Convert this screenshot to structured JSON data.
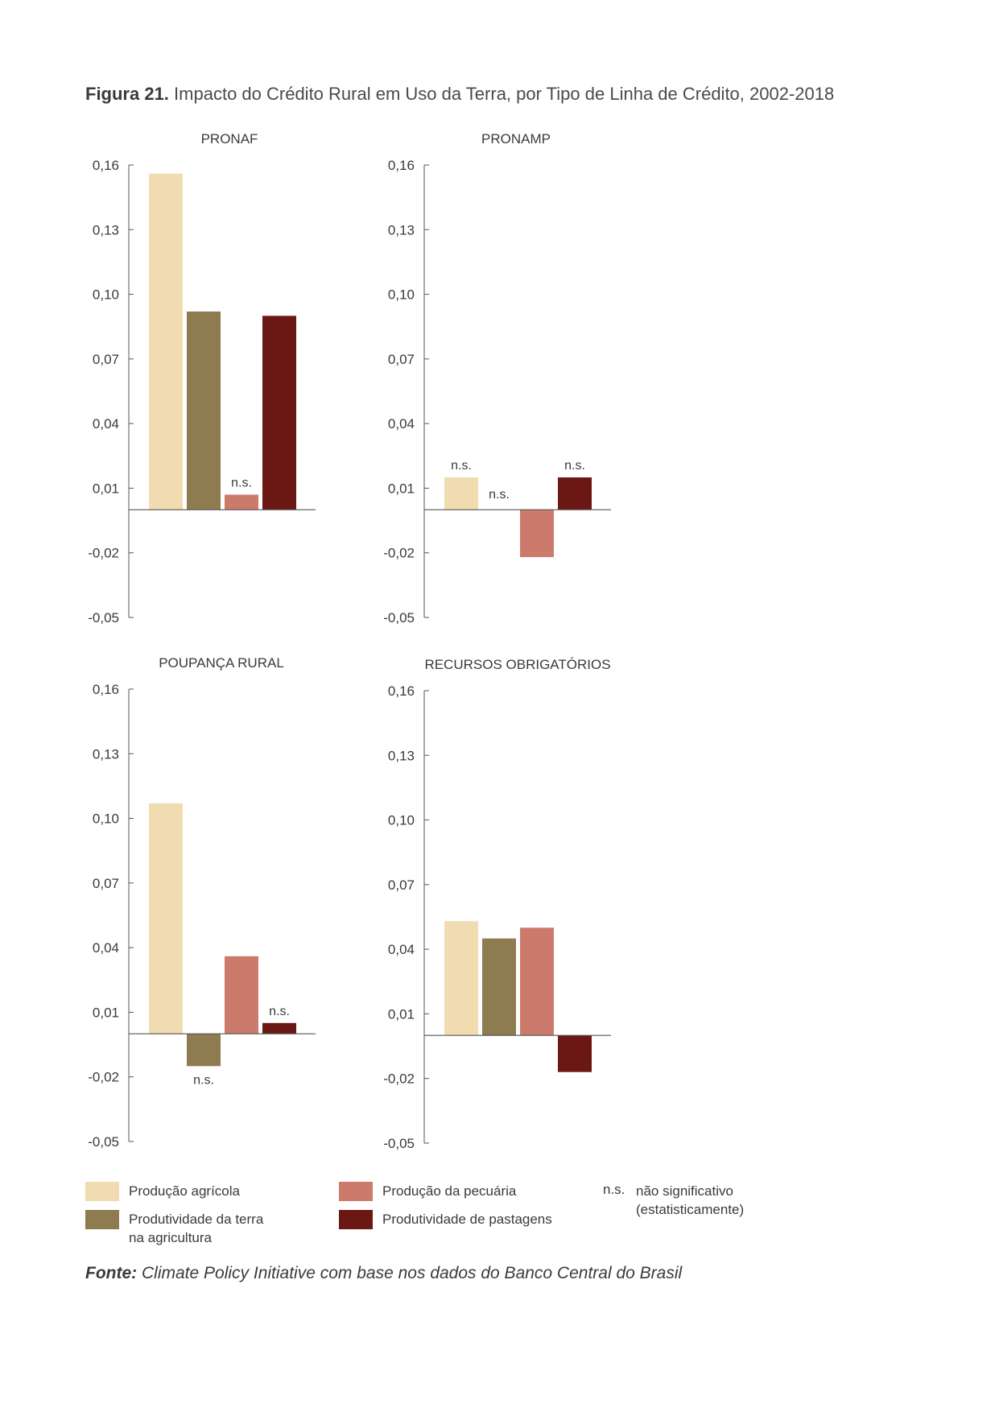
{
  "figure": {
    "label": "Figura 21.",
    "title": "Impacto do Crédito Rural em Uso da Terra, por Tipo de Linha de Crédito, 2002-2018"
  },
  "colors": {
    "producao_agricola": "#f0dcb0",
    "produtividade_terra": "#8e7b4f",
    "producao_pecuaria": "#cc7a6c",
    "produtividade_pastagens": "#6b1713",
    "axis": "#555555"
  },
  "chart_data": [
    {
      "type": "bar",
      "title": "PRONAF",
      "ylim": [
        -0.05,
        0.16
      ],
      "yticks": [
        "0,16",
        "0,13",
        "0,10",
        "0,07",
        "0,04",
        "0,01",
        "-0,02",
        "-0,05"
      ],
      "series": [
        {
          "name": "Produção agrícola",
          "value": 0.156,
          "note": ""
        },
        {
          "name": "Produtividade da terra na agricultura",
          "value": 0.092,
          "note": ""
        },
        {
          "name": "Produção da pecuária",
          "value": 0.007,
          "note": "n.s."
        },
        {
          "name": "Produtividade de pastagens",
          "value": 0.09,
          "note": ""
        }
      ]
    },
    {
      "type": "bar",
      "title": "PRONAMP",
      "ylim": [
        -0.05,
        0.16
      ],
      "yticks": [
        "0,16",
        "0,13",
        "0,10",
        "0,07",
        "0,04",
        "0,01",
        "-0,02",
        "-0,05"
      ],
      "series": [
        {
          "name": "Produção agrícola",
          "value": 0.015,
          "note": "n.s."
        },
        {
          "name": "Produtividade da terra na agricultura",
          "value": 0.0,
          "note": "n.s."
        },
        {
          "name": "Produção da pecuária",
          "value": -0.022,
          "note": ""
        },
        {
          "name": "Produtividade de pastagens",
          "value": 0.015,
          "note": "n.s."
        }
      ]
    },
    {
      "type": "bar",
      "title": "POUPANÇA RURAL",
      "ylim": [
        -0.05,
        0.16
      ],
      "yticks": [
        "0,16",
        "0,13",
        "0,10",
        "0,07",
        "0,04",
        "0,01",
        "-0,02",
        "-0,05"
      ],
      "series": [
        {
          "name": "Produção agrícola",
          "value": 0.107,
          "note": ""
        },
        {
          "name": "Produtividade da terra na agricultura",
          "value": -0.015,
          "note": "n.s."
        },
        {
          "name": "Produção da pecuária",
          "value": 0.036,
          "note": ""
        },
        {
          "name": "Produtividade de pastagens",
          "value": 0.005,
          "note": "n.s."
        }
      ]
    },
    {
      "type": "bar",
      "title": "RECURSOS OBRIGATÓRIOS",
      "ylim": [
        -0.05,
        0.16
      ],
      "yticks": [
        "0,16",
        "0,13",
        "0,10",
        "0,07",
        "0,04",
        "0,01",
        "-0,02",
        "-0,05"
      ],
      "series": [
        {
          "name": "Produção agrícola",
          "value": 0.053,
          "note": ""
        },
        {
          "name": "Produtividade da terra na agricultura",
          "value": 0.045,
          "note": ""
        },
        {
          "name": "Produção da pecuária",
          "value": 0.05,
          "note": ""
        },
        {
          "name": "Produtividade de pastagens",
          "value": -0.017,
          "note": ""
        }
      ]
    }
  ],
  "legend": {
    "items": [
      {
        "label": "Produção agrícola",
        "color": "#f0dcb0"
      },
      {
        "label": "Produtividade da terra\nna agricultura",
        "color": "#8e7b4f"
      },
      {
        "label": "Produção da pecuária",
        "color": "#cc7a6c"
      },
      {
        "label": "Produtividade de pastagens",
        "color": "#6b1713"
      }
    ],
    "ns_abbr": "n.s.",
    "ns_text": "não significativo\n(estatisticamente)"
  },
  "source": {
    "label": "Fonte:",
    "text": "Climate Policy Initiative com base nos dados do Banco Central do Brasil"
  }
}
